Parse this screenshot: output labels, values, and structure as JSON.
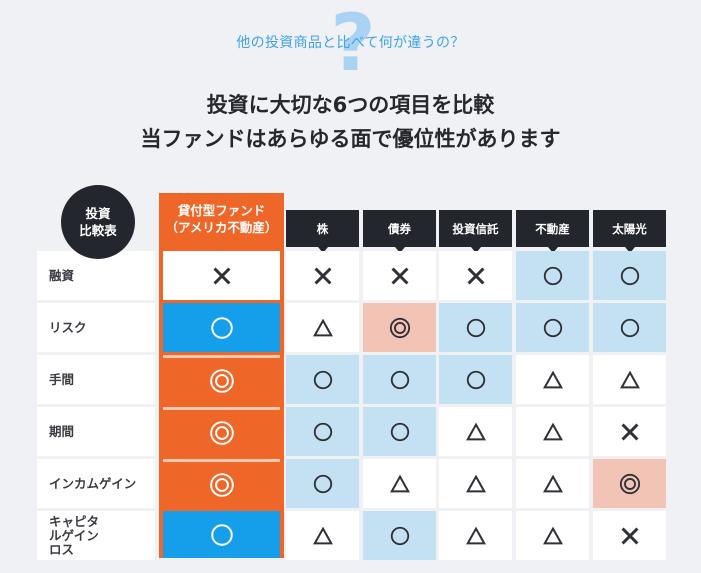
{
  "header": {
    "question_icon": "question-mark-icon",
    "subtitle": "他の投資商品と比べて何が違うの？",
    "headline_line1": "投資に大切な6つの項目を比較",
    "headline_line2": "当ファンドはあらゆる面で優位性があります"
  },
  "table": {
    "corner_badge_line1": "投資",
    "corner_badge_line2": "比較表",
    "highlight_column": {
      "line1": "貸付型ファンド",
      "line2": "（アメリカ不動産）"
    },
    "columns": [
      "株",
      "債券",
      "投資信託",
      "不動産",
      "太陽光"
    ],
    "legend": {
      "double-circle": "◎",
      "circle": "○",
      "triangle": "△",
      "cross": "×"
    },
    "rows": [
      {
        "label": "融資",
        "highlight": {
          "symbol": "cross",
          "bg": "hl-white"
        },
        "cells": [
          {
            "symbol": "cross",
            "bg": "white"
          },
          {
            "symbol": "cross",
            "bg": "white"
          },
          {
            "symbol": "cross",
            "bg": "white"
          },
          {
            "symbol": "circle",
            "bg": "blue"
          },
          {
            "symbol": "circle",
            "bg": "blue"
          }
        ]
      },
      {
        "label": "リスク",
        "highlight": {
          "symbol": "circle",
          "bg": "hl-blue"
        },
        "cells": [
          {
            "symbol": "triangle",
            "bg": "white"
          },
          {
            "symbol": "double-circle",
            "bg": "pink"
          },
          {
            "symbol": "circle",
            "bg": "blue"
          },
          {
            "symbol": "circle",
            "bg": "blue"
          },
          {
            "symbol": "circle",
            "bg": "blue"
          }
        ]
      },
      {
        "label": "手間",
        "highlight": {
          "symbol": "double-circle",
          "bg": "hl-orange"
        },
        "cells": [
          {
            "symbol": "circle",
            "bg": "blue"
          },
          {
            "symbol": "circle",
            "bg": "blue"
          },
          {
            "symbol": "circle",
            "bg": "blue"
          },
          {
            "symbol": "triangle",
            "bg": "white"
          },
          {
            "symbol": "triangle",
            "bg": "white"
          }
        ]
      },
      {
        "label": "期間",
        "highlight": {
          "symbol": "double-circle",
          "bg": "hl-orange"
        },
        "cells": [
          {
            "symbol": "circle",
            "bg": "blue"
          },
          {
            "symbol": "circle",
            "bg": "blue"
          },
          {
            "symbol": "triangle",
            "bg": "white"
          },
          {
            "symbol": "triangle",
            "bg": "white"
          },
          {
            "symbol": "cross",
            "bg": "white"
          }
        ]
      },
      {
        "label": "インカムゲイン",
        "highlight": {
          "symbol": "double-circle",
          "bg": "hl-orange"
        },
        "cells": [
          {
            "symbol": "circle",
            "bg": "blue"
          },
          {
            "symbol": "triangle",
            "bg": "white"
          },
          {
            "symbol": "triangle",
            "bg": "white"
          },
          {
            "symbol": "triangle",
            "bg": "white"
          },
          {
            "symbol": "double-circle",
            "bg": "pink"
          }
        ]
      },
      {
        "label": "キャピタルゲインロス",
        "highlight": {
          "symbol": "circle",
          "bg": "hl-blue"
        },
        "cells": [
          {
            "symbol": "triangle",
            "bg": "white"
          },
          {
            "symbol": "circle",
            "bg": "blue"
          },
          {
            "symbol": "triangle",
            "bg": "white"
          },
          {
            "symbol": "triangle",
            "bg": "white"
          },
          {
            "symbol": "cross",
            "bg": "white"
          }
        ]
      }
    ]
  },
  "colors": {
    "background": "#f0f1f5",
    "accent_orange": "#ee6628",
    "accent_blue": "#159ee9",
    "cell_blue": "#c4e0f3",
    "cell_pink": "#f1c4b6",
    "header_dark": "#24262d",
    "subtitle_blue": "#3fa2ea"
  }
}
